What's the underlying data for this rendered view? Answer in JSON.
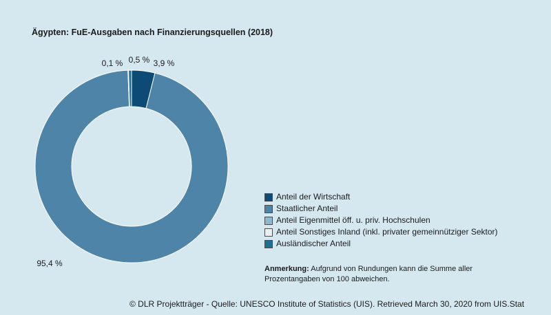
{
  "title": "Ägypten: FuE-Ausgaben nach Finanzierungsquellen (2018)",
  "chart_data": {
    "type": "pie",
    "subtype": "donut",
    "title": "Ägypten: FuE-Ausgaben nach Finanzierungsquellen (2018)",
    "unit": "%",
    "legend_position": "right",
    "series": [
      {
        "name": "Anteil der Wirtschaft",
        "value": 3.9,
        "label": "3,9 %",
        "color": "#0d4a75"
      },
      {
        "name": "Staatlicher Anteil",
        "value": 95.4,
        "label": "95,4 %",
        "color": "#4e84a8"
      },
      {
        "name": "Anteil Eigenmittel öff. u. priv. Hochschulen",
        "value": 0.1,
        "label": "0,1 %",
        "color": "#8fb8d0"
      },
      {
        "name": "Anteil Sonstiges Inland (inkl. privater gemeinnütziger Sektor)",
        "value": 0.0,
        "label": "",
        "color": "#e9f1f5"
      },
      {
        "name": "Ausländischer Anteil",
        "value": 0.5,
        "label": "0,5 %",
        "color": "#1f6e93"
      }
    ]
  },
  "note": {
    "label": "Anmerkung:",
    "text": " Aufgrund von Rundungen kann die Summe aller Prozentangaben von 100 abweichen."
  },
  "source": "© DLR Projektträger - Quelle: UNESCO Institute of Statistics (UIS). Retrieved March 30, 2020 from UIS.Stat"
}
